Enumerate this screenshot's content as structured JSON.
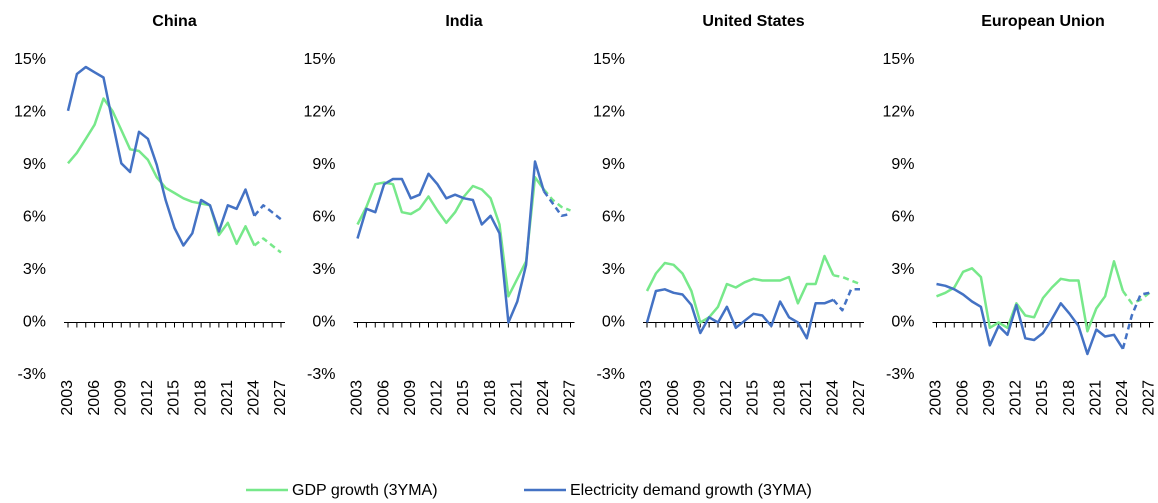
{
  "chart_data": [
    {
      "type": "line",
      "title": "China",
      "x": [
        2003,
        2004,
        2005,
        2006,
        2007,
        2008,
        2009,
        2010,
        2011,
        2012,
        2013,
        2014,
        2015,
        2016,
        2017,
        2018,
        2019,
        2020,
        2021,
        2022,
        2023,
        2024,
        2025,
        2026,
        2027
      ],
      "xlim": [
        2003,
        2027
      ],
      "xticks": [
        2003,
        2006,
        2009,
        2012,
        2015,
        2018,
        2021,
        2024,
        2027
      ],
      "ylim": [
        -3,
        15
      ],
      "yticks": [
        {
          "value": -3,
          "label": "-3%"
        },
        {
          "value": 0,
          "label": "0%"
        },
        {
          "value": 3,
          "label": "3%"
        },
        {
          "value": 6,
          "label": "6%"
        },
        {
          "value": 9,
          "label": "9%"
        },
        {
          "value": 12,
          "label": "12%"
        },
        {
          "value": 15,
          "label": "15%"
        }
      ],
      "dashed_from": 2024,
      "series": [
        {
          "name": "GDP growth (3YMA)",
          "color": "#77e88a",
          "values": [
            9.1,
            9.7,
            10.5,
            11.3,
            12.8,
            12.1,
            11.0,
            9.9,
            9.8,
            9.3,
            8.3,
            7.7,
            7.4,
            7.1,
            6.9,
            6.8,
            6.7,
            5.0,
            5.7,
            4.5,
            5.5,
            4.4,
            4.8,
            4.4,
            4.0
          ]
        },
        {
          "name": "Electricity demand growth (3YMA)",
          "color": "#4472c4",
          "values": [
            12.1,
            14.2,
            14.6,
            14.3,
            14.0,
            11.5,
            9.1,
            8.6,
            10.9,
            10.5,
            9.0,
            7.0,
            5.4,
            4.4,
            5.1,
            7.0,
            6.7,
            5.2,
            6.7,
            6.5,
            7.6,
            6.1,
            6.7,
            6.3,
            5.9
          ]
        }
      ]
    },
    {
      "type": "line",
      "title": "India",
      "x": [
        2003,
        2004,
        2005,
        2006,
        2007,
        2008,
        2009,
        2010,
        2011,
        2012,
        2013,
        2014,
        2015,
        2016,
        2017,
        2018,
        2019,
        2020,
        2021,
        2022,
        2023,
        2024,
        2025,
        2026,
        2027
      ],
      "xlim": [
        2003,
        2027
      ],
      "xticks": [
        2003,
        2006,
        2009,
        2012,
        2015,
        2018,
        2021,
        2024,
        2027
      ],
      "ylim": [
        -3,
        15
      ],
      "yticks": [
        {
          "value": -3,
          "label": "-3%"
        },
        {
          "value": 0,
          "label": "0%"
        },
        {
          "value": 3,
          "label": "3%"
        },
        {
          "value": 6,
          "label": "6%"
        },
        {
          "value": 9,
          "label": "9%"
        },
        {
          "value": 12,
          "label": "12%"
        },
        {
          "value": 15,
          "label": "15%"
        }
      ],
      "dashed_from": 2024,
      "series": [
        {
          "name": "GDP growth (3YMA)",
          "color": "#77e88a",
          "values": [
            5.6,
            6.6,
            7.9,
            8.0,
            7.9,
            6.3,
            6.2,
            6.5,
            7.2,
            6.4,
            5.7,
            6.3,
            7.2,
            7.8,
            7.6,
            7.1,
            5.6,
            1.5,
            2.5,
            3.5,
            8.3,
            7.6,
            7.0,
            6.6,
            6.4
          ]
        },
        {
          "name": "Electricity demand growth (3YMA)",
          "color": "#4472c4",
          "values": [
            4.8,
            6.5,
            6.3,
            7.9,
            8.2,
            8.2,
            7.1,
            7.3,
            8.5,
            7.9,
            7.1,
            7.3,
            7.1,
            7.0,
            5.6,
            6.1,
            5.1,
            0.0,
            1.2,
            3.3,
            9.2,
            7.5,
            6.8,
            6.1,
            6.2
          ]
        }
      ]
    },
    {
      "type": "line",
      "title": "United States",
      "x": [
        2003,
        2004,
        2005,
        2006,
        2007,
        2008,
        2009,
        2010,
        2011,
        2012,
        2013,
        2014,
        2015,
        2016,
        2017,
        2018,
        2019,
        2020,
        2021,
        2022,
        2023,
        2024,
        2025,
        2026,
        2027
      ],
      "xlim": [
        2003,
        2027
      ],
      "xticks": [
        2003,
        2006,
        2009,
        2012,
        2015,
        2018,
        2021,
        2024,
        2027
      ],
      "ylim": [
        -3,
        15
      ],
      "yticks": [
        {
          "value": -3,
          "label": "-3%"
        },
        {
          "value": 0,
          "label": "0%"
        },
        {
          "value": 3,
          "label": "3%"
        },
        {
          "value": 6,
          "label": "6%"
        },
        {
          "value": 9,
          "label": "9%"
        },
        {
          "value": 12,
          "label": "12%"
        },
        {
          "value": 15,
          "label": "15%"
        }
      ],
      "dashed_from": 2024,
      "series": [
        {
          "name": "GDP growth (3YMA)",
          "color": "#77e88a",
          "values": [
            1.8,
            2.8,
            3.4,
            3.3,
            2.8,
            1.8,
            0.0,
            0.3,
            0.9,
            2.2,
            2.0,
            2.3,
            2.5,
            2.4,
            2.4,
            2.4,
            2.6,
            1.1,
            2.2,
            2.2,
            3.8,
            2.7,
            2.6,
            2.4,
            2.2
          ]
        },
        {
          "name": "Electricity demand growth (3YMA)",
          "color": "#4472c4",
          "values": [
            0.0,
            1.8,
            1.9,
            1.7,
            1.6,
            1.0,
            -0.6,
            0.3,
            0.0,
            0.9,
            -0.3,
            0.1,
            0.5,
            0.4,
            -0.2,
            1.2,
            0.3,
            0.0,
            -0.9,
            1.1,
            1.1,
            1.3,
            0.7,
            1.9,
            1.9
          ]
        }
      ]
    },
    {
      "type": "line",
      "title": "European Union",
      "x": [
        2003,
        2004,
        2005,
        2006,
        2007,
        2008,
        2009,
        2010,
        2011,
        2012,
        2013,
        2014,
        2015,
        2016,
        2017,
        2018,
        2019,
        2020,
        2021,
        2022,
        2023,
        2024,
        2025,
        2026,
        2027
      ],
      "xlim": [
        2003,
        2027
      ],
      "xticks": [
        2003,
        2006,
        2009,
        2012,
        2015,
        2018,
        2021,
        2024,
        2027
      ],
      "ylim": [
        -3,
        15
      ],
      "yticks": [
        {
          "value": -3,
          "label": "-3%"
        },
        {
          "value": 0,
          "label": "0%"
        },
        {
          "value": 3,
          "label": "3%"
        },
        {
          "value": 6,
          "label": "6%"
        },
        {
          "value": 9,
          "label": "9%"
        },
        {
          "value": 12,
          "label": "12%"
        },
        {
          "value": 15,
          "label": "15%"
        }
      ],
      "dashed_from": 2024,
      "series": [
        {
          "name": "GDP growth (3YMA)",
          "color": "#77e88a",
          "values": [
            1.5,
            1.7,
            2.0,
            2.9,
            3.1,
            2.6,
            -0.3,
            0.0,
            -0.3,
            1.1,
            0.4,
            0.3,
            1.4,
            2.0,
            2.5,
            2.4,
            2.4,
            -0.5,
            0.8,
            1.5,
            3.5,
            1.8,
            1.1,
            1.3,
            1.7
          ]
        },
        {
          "name": "Electricity demand growth (3YMA)",
          "color": "#4472c4",
          "values": [
            2.2,
            2.1,
            1.9,
            1.6,
            1.2,
            0.9,
            -1.3,
            -0.2,
            -0.7,
            1.0,
            -0.9,
            -1.0,
            -0.6,
            0.2,
            1.1,
            0.5,
            -0.2,
            -1.8,
            -0.4,
            -0.8,
            -0.7,
            -1.5,
            0.4,
            1.6,
            1.7
          ]
        }
      ]
    }
  ]
}
